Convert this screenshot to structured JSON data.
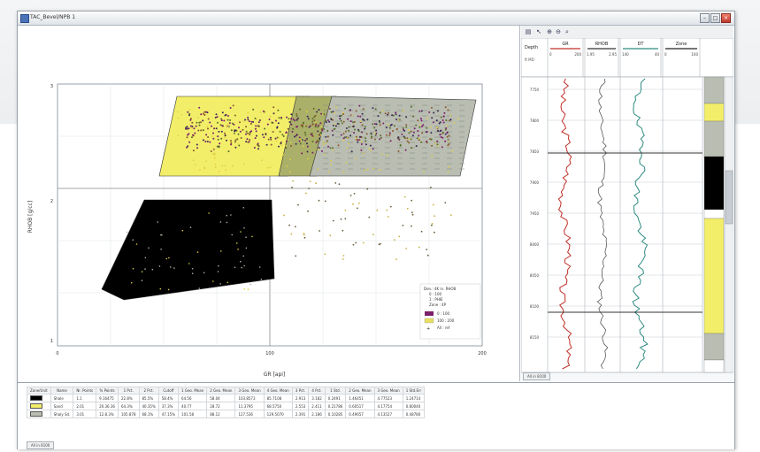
{
  "window": {
    "title": "TAC_Bevel/NPB 1"
  },
  "titlebar_buttons": {
    "minimize": "–",
    "maximize": "□",
    "close": "×"
  },
  "crossplot": {
    "x_axis_label": "GR [api]",
    "y_axis_label": "RHOB [g/cc]",
    "x_tick_labels": [
      "0",
      "100",
      "200"
    ],
    "y_tick_labels": [
      "3",
      "2",
      "1"
    ],
    "legend_lines": [
      "Den.: 4K in. RHOB",
      "0 : 100",
      "1 : PHIE",
      "Zone : 4P"
    ],
    "legend_entries": [
      {
        "label": "0 : 100",
        "color": "#7b1f6a"
      },
      {
        "label": "100 : 200",
        "color": "#e8e060"
      },
      {
        "label": "All : ref",
        "color": "#222222"
      }
    ],
    "polygon_colors": {
      "shale": "#000000",
      "sand": "#f2ee6a",
      "shaly_sand": "#b9bdb2",
      "overlap": "#aab06a"
    }
  },
  "log_panel": {
    "toolbar_icons": [
      "select-icon",
      "pointer-icon",
      "zoom-in-icon",
      "zoom-out-icon",
      "zoom-icon"
    ],
    "depth_header": "Depth",
    "depth_unit": "ft MD",
    "tracks": [
      {
        "name": "GR",
        "range_left": "0",
        "range_right": "200",
        "color": "#c03028"
      },
      {
        "name": "RHOB",
        "range_left": "1.95",
        "range_right": "2.95",
        "color": "#333333"
      },
      {
        "name": "DT",
        "range_left": "140",
        "range_right": "40",
        "color": "#2e8b80"
      },
      {
        "name": "Zone",
        "range_left": "0",
        "range_right": "100",
        "color": "#222222"
      }
    ],
    "depth_labels": [
      "7750",
      "7800",
      "7850",
      "7900",
      "7950",
      "8000",
      "8050",
      "8100",
      "8150"
    ],
    "status_tab": "All in 8100"
  },
  "stats": {
    "columns": [
      "Zone/Unit",
      "Name",
      "Nr. Points",
      "% Points",
      "1 Pct.",
      "2 Pct.",
      "Cutoff",
      "1 Geo. Mean",
      "2 Geo. Mean",
      "3 Geo. Mean",
      "4 Geo. Mean",
      "3 Pct.",
      "4 Pct.",
      "1 Std.",
      "2 Geo. Mean",
      "3 Geo. Mean",
      "1 Std.Err"
    ],
    "rows": [
      {
        "swatch": "#000000",
        "cells": [
          "",
          "Shale",
          "1.1",
          "9.16475",
          "22.8%",
          "85.5%",
          "58.4%",
          "64.56",
          "58.04",
          "103.8573",
          "85.7108",
          "2.913",
          "3.182",
          "0.2491",
          "1.46451",
          "4.77523",
          "1.24714"
        ]
      },
      {
        "swatch": "#f2ee6a",
        "cells": [
          "",
          "Sand",
          "2.01",
          "20.36.36",
          "64.3%",
          "40.35%",
          "37.3%",
          "40.77",
          "28.72",
          "11.3795",
          "68.5750",
          "2.553",
          "2.411",
          "0.21786",
          "0.60517",
          "4.17754",
          "0.80040"
        ]
      },
      {
        "swatch": "#b9bdb2",
        "cells": [
          "",
          "Shaly Sd.",
          "3.01",
          "12.8.3%",
          "105.878",
          "68.1%",
          "47.15%",
          "101.58",
          "88.12",
          "127.536",
          "129.5070",
          "2.391",
          "2.186",
          "0.10285",
          "0.49657",
          "4.13527",
          "0.48780"
        ]
      }
    ],
    "status_tab": "All in 8100"
  }
}
